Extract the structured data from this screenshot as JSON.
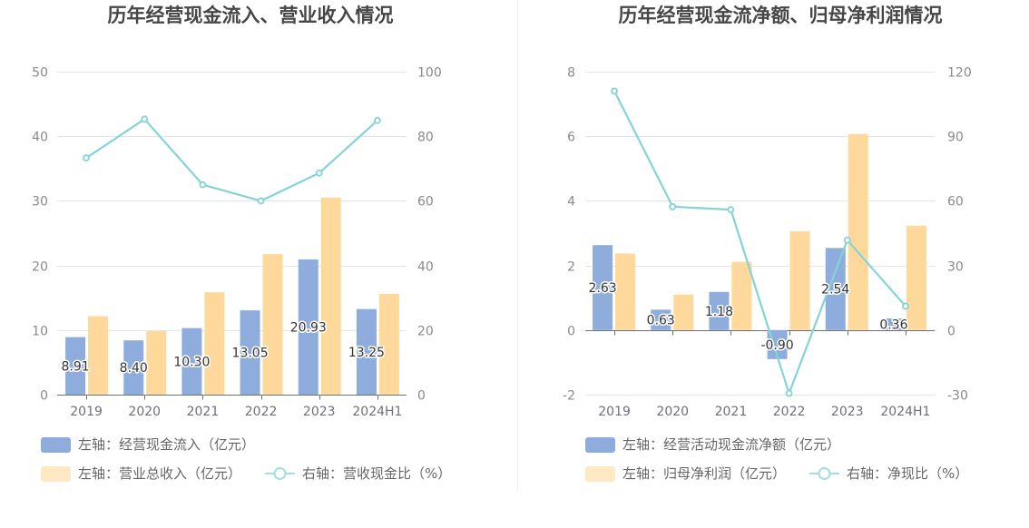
{
  "colors": {
    "grid": "#e0e6f1",
    "axis_line": "#6e7079",
    "axis_label": "#8a8a8a",
    "category_label": "#6e7079"
  },
  "chart_data": [
    {
      "type": "bar",
      "title": "历年经营现金流入、营业收入情况",
      "categories": [
        "2019",
        "2020",
        "2021",
        "2022",
        "2023",
        "2024H1"
      ],
      "y_left": {
        "min": 0,
        "max": 50,
        "ticks": [
          0,
          10,
          20,
          30,
          40,
          50
        ]
      },
      "y_right": {
        "min": 0,
        "max": 100,
        "ticks": [
          0,
          20,
          40,
          60,
          80,
          100
        ]
      },
      "grid": true,
      "legend_position": "bottom",
      "label_decimals": 2,
      "series": [
        {
          "name": "左轴：经营现金流入（亿元）",
          "type": "bar",
          "y_axis_index": 0,
          "color": "#8eaddd",
          "show_labels": true,
          "values": [
            8.91,
            8.4,
            10.3,
            13.05,
            20.93,
            13.25
          ]
        },
        {
          "name": "左轴：营业总收入（亿元）",
          "type": "bar",
          "y_axis_index": 0,
          "color": "#ffd89c",
          "show_labels": false,
          "values": [
            12.15,
            9.85,
            15.85,
            21.75,
            30.5,
            15.6
          ]
        },
        {
          "name": "右轴：营收现金比（%）",
          "type": "line",
          "y_axis_index": 1,
          "color": "#84d3d6",
          "show_labels": false,
          "values": [
            73.3,
            85.3,
            65.0,
            60.0,
            68.6,
            84.9
          ]
        }
      ]
    },
    {
      "type": "bar",
      "title": "历年经营现金流净额、归母净利润情况",
      "categories": [
        "2019",
        "2020",
        "2021",
        "2022",
        "2023",
        "2024H1"
      ],
      "y_left": {
        "min": -2,
        "max": 8,
        "ticks": [
          -2,
          0,
          2,
          4,
          6,
          8
        ]
      },
      "y_right": {
        "min": -30,
        "max": 120,
        "ticks": [
          -30,
          0,
          30,
          60,
          90,
          120
        ]
      },
      "grid": true,
      "legend_position": "bottom",
      "label_decimals": 2,
      "series": [
        {
          "name": "左轴：经营活动现金流净额（亿元）",
          "type": "bar",
          "y_axis_index": 0,
          "color": "#8eaddd",
          "show_labels": true,
          "values": [
            2.63,
            0.63,
            1.18,
            -0.9,
            2.54,
            0.36
          ]
        },
        {
          "name": "左轴：归母净利润（亿元）",
          "type": "bar",
          "y_axis_index": 0,
          "color": "#ffd89c",
          "show_labels": false,
          "values": [
            2.37,
            1.1,
            2.11,
            3.06,
            6.07,
            3.23
          ]
        },
        {
          "name": "右轴：净现比（%）",
          "type": "line",
          "y_axis_index": 1,
          "color": "#84d3d6",
          "show_labels": false,
          "values": [
            111.0,
            57.3,
            55.9,
            -29.4,
            41.8,
            11.1
          ]
        }
      ]
    }
  ]
}
